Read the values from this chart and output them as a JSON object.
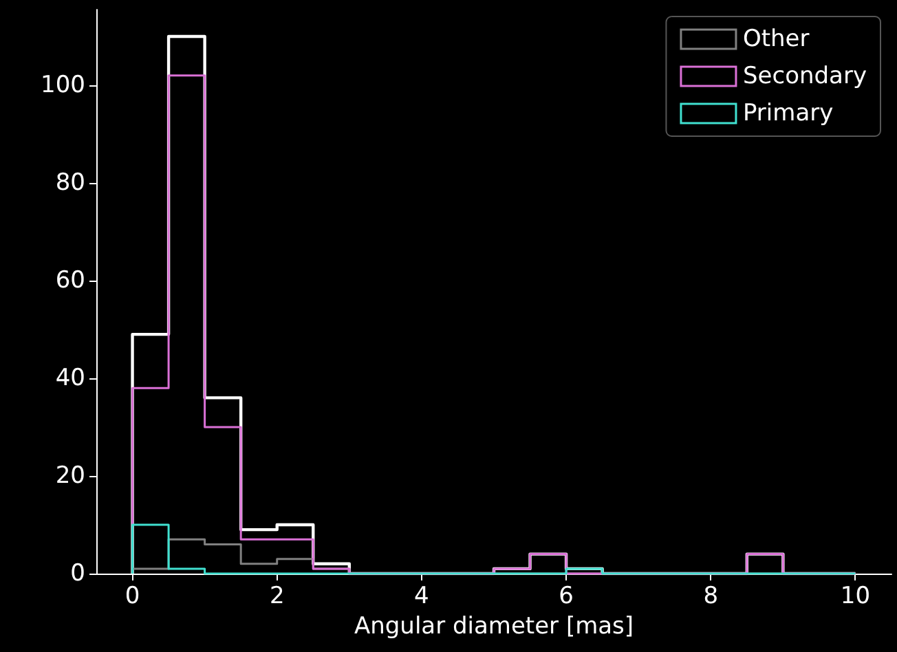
{
  "chart_data": {
    "type": "histogram",
    "xlabel": "Angular diameter [mas]",
    "bins": [
      0,
      0.5,
      1,
      1.5,
      2,
      2.5,
      3,
      3.5,
      4,
      4.5,
      5,
      5.5,
      6,
      6.5,
      7,
      7.5,
      8,
      8.5,
      9,
      9.5,
      10
    ],
    "series": [
      {
        "color": "#ffffff",
        "values": [
          49,
          110,
          36,
          9,
          10,
          2,
          0,
          0,
          0,
          0,
          1,
          4,
          1,
          0,
          0,
          0,
          0,
          4,
          0,
          0
        ]
      },
      {
        "name": "Other",
        "color": "#808080",
        "values": [
          1,
          7,
          6,
          2,
          3,
          1,
          0,
          0,
          0,
          0,
          0,
          0,
          0,
          0,
          0,
          0,
          0,
          0,
          0,
          0
        ]
      },
      {
        "name": "Secondary",
        "color": "#da70d6",
        "values": [
          38,
          102,
          30,
          7,
          7,
          1,
          0,
          0,
          0,
          0,
          1,
          4,
          0,
          0,
          0,
          0,
          0,
          4,
          0,
          0
        ]
      },
      {
        "name": "Primary",
        "color": "#40e0d0",
        "values": [
          10,
          1,
          0,
          0,
          0,
          0,
          0,
          0,
          0,
          0,
          0,
          0,
          1,
          0,
          0,
          0,
          0,
          0,
          0,
          0
        ]
      }
    ],
    "xlim": [
      -0.5,
      10.5
    ],
    "xticks": [
      0,
      2,
      4,
      6,
      8,
      10
    ],
    "ylim": [
      0,
      115.5
    ],
    "yticks": [
      0,
      20,
      40,
      60,
      80,
      100
    ],
    "grid": false,
    "legend": "top right"
  }
}
